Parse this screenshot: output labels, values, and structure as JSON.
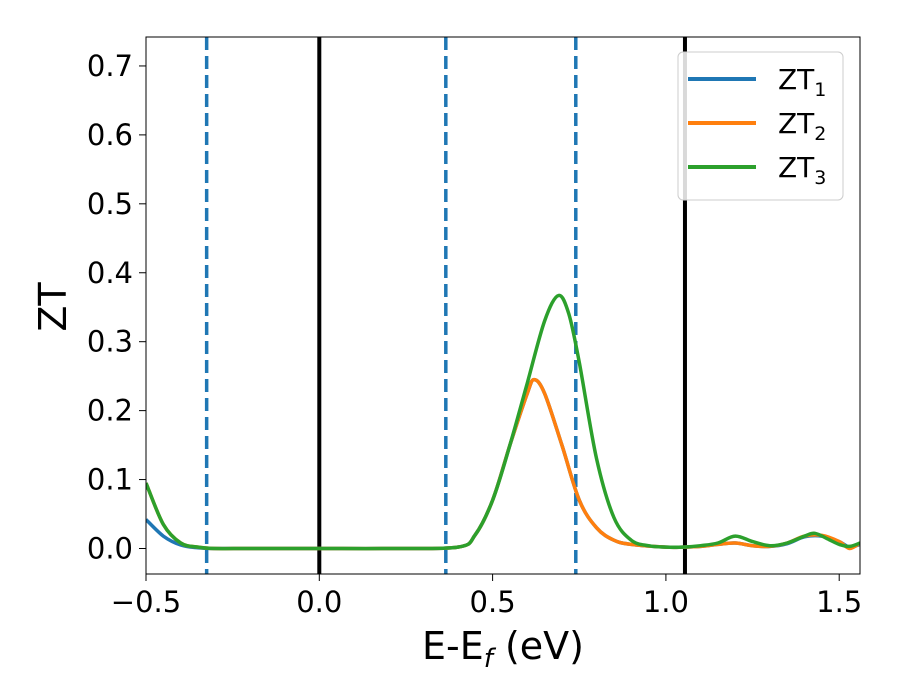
{
  "chart_data": {
    "type": "line",
    "xlabel": {
      "base": "E-E",
      "sub": "f",
      "suffix": " (eV)"
    },
    "ylabel": "ZT",
    "xlim": [
      -0.5,
      1.56
    ],
    "ylim": [
      -0.037,
      0.742
    ],
    "x_ticks": [
      -0.5,
      0.0,
      0.5,
      1.0,
      1.5
    ],
    "x_tick_labels": [
      "−0.5",
      "0.0",
      "0.5",
      "1.0",
      "1.5"
    ],
    "y_ticks": [
      0.0,
      0.1,
      0.2,
      0.3,
      0.4,
      0.5,
      0.6,
      0.7
    ],
    "y_tick_labels": [
      "0.0",
      "0.1",
      "0.2",
      "0.3",
      "0.4",
      "0.5",
      "0.6",
      "0.7"
    ],
    "grid": false,
    "legend_position": "top-right",
    "vertical_lines": [
      {
        "x": 0.0,
        "style": "solid",
        "color": "#000000"
      },
      {
        "x": 1.055,
        "style": "solid",
        "color": "#000000"
      },
      {
        "x": -0.325,
        "style": "dashed",
        "color": "#1f77b4"
      },
      {
        "x": 0.365,
        "style": "dashed",
        "color": "#1f77b4"
      },
      {
        "x": 0.74,
        "style": "dashed",
        "color": "#1f77b4"
      }
    ],
    "series": [
      {
        "name": {
          "base": "ZT",
          "sub": "1"
        },
        "color": "#1f77b4",
        "x": [
          -0.5,
          -0.45,
          -0.4,
          -0.35,
          -0.3,
          -0.2,
          0.0,
          0.2,
          0.4,
          0.45,
          0.5,
          0.55,
          0.6,
          0.62,
          0.65,
          0.7,
          0.75,
          0.8,
          0.85,
          0.9,
          1.0,
          1.05,
          1.1,
          1.15,
          1.2,
          1.25,
          1.3,
          1.35,
          1.4,
          1.45,
          1.5,
          1.53,
          1.56
        ],
        "y": [
          0.042,
          0.018,
          0.005,
          0.001,
          0.0,
          0.0,
          0.0,
          0.0,
          0.002,
          0.02,
          0.07,
          0.15,
          0.225,
          0.245,
          0.225,
          0.15,
          0.07,
          0.03,
          0.012,
          0.006,
          0.002,
          0.002,
          0.003,
          0.006,
          0.008,
          0.004,
          0.003,
          0.007,
          0.017,
          0.018,
          0.01,
          0.002,
          0.006
        ]
      },
      {
        "name": {
          "base": "ZT",
          "sub": "2"
        },
        "color": "#ff7f0e",
        "x": [
          -0.5,
          -0.45,
          -0.4,
          -0.35,
          -0.3,
          -0.2,
          0.0,
          0.2,
          0.4,
          0.45,
          0.5,
          0.55,
          0.6,
          0.62,
          0.65,
          0.7,
          0.75,
          0.8,
          0.85,
          0.9,
          1.0,
          1.05,
          1.1,
          1.15,
          1.2,
          1.25,
          1.3,
          1.35,
          1.4,
          1.45,
          1.5,
          1.53,
          1.56
        ],
        "y": [
          0.095,
          0.035,
          0.008,
          0.002,
          0.0,
          0.0,
          0.0,
          0.0,
          0.002,
          0.02,
          0.07,
          0.15,
          0.225,
          0.245,
          0.225,
          0.15,
          0.07,
          0.03,
          0.012,
          0.006,
          0.002,
          0.002,
          0.003,
          0.006,
          0.008,
          0.004,
          0.003,
          0.008,
          0.018,
          0.019,
          0.01,
          0.0,
          0.008
        ]
      },
      {
        "name": {
          "base": "ZT",
          "sub": "3"
        },
        "color": "#2ca02c",
        "x": [
          -0.5,
          -0.45,
          -0.4,
          -0.35,
          -0.3,
          -0.2,
          0.0,
          0.2,
          0.4,
          0.45,
          0.5,
          0.55,
          0.6,
          0.65,
          0.69,
          0.72,
          0.75,
          0.8,
          0.85,
          0.9,
          0.95,
          1.0,
          1.05,
          1.1,
          1.15,
          1.2,
          1.25,
          1.3,
          1.35,
          1.4,
          1.43,
          1.47,
          1.5,
          1.53,
          1.56
        ],
        "y": [
          0.095,
          0.035,
          0.008,
          0.002,
          0.0,
          0.0,
          0.0,
          0.0,
          0.002,
          0.02,
          0.07,
          0.15,
          0.24,
          0.33,
          0.367,
          0.34,
          0.27,
          0.13,
          0.045,
          0.012,
          0.004,
          0.002,
          0.002,
          0.004,
          0.008,
          0.018,
          0.01,
          0.004,
          0.008,
          0.018,
          0.022,
          0.013,
          0.006,
          0.003,
          0.008
        ]
      }
    ]
  }
}
